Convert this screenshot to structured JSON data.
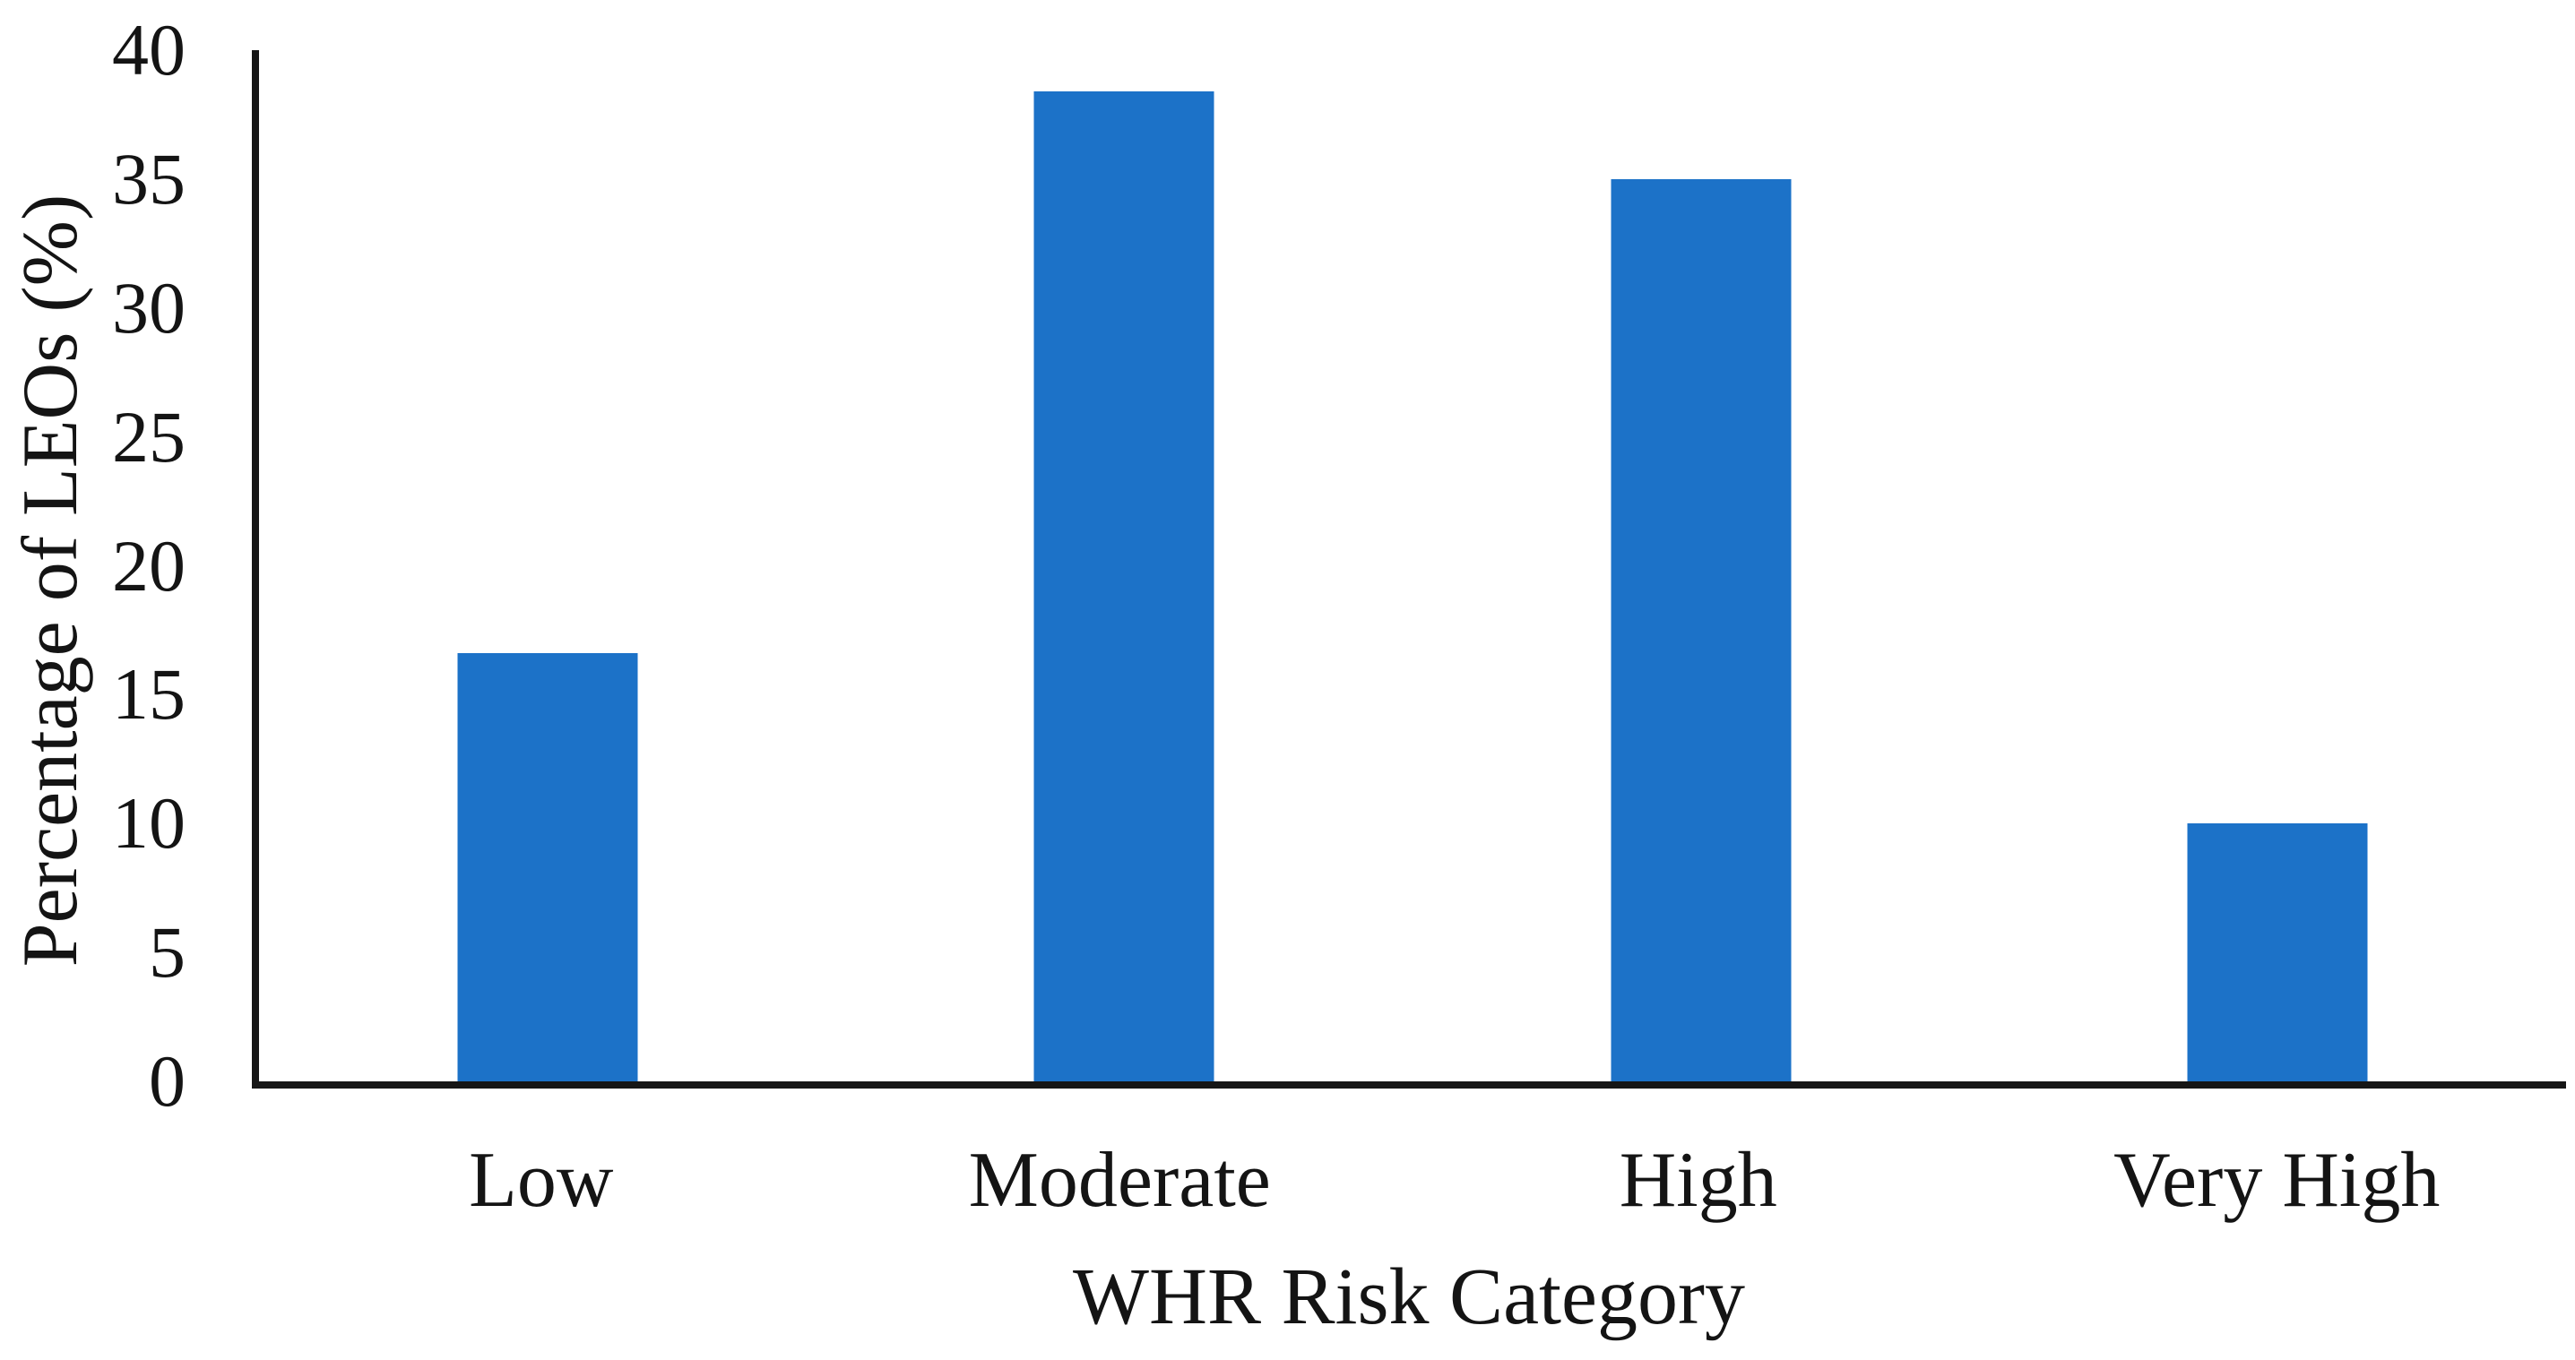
{
  "figure": {
    "background": "#ffffff",
    "text_color": "#141414"
  },
  "chart_data": {
    "type": "bar",
    "categories": [
      "Low",
      "Moderate",
      "High",
      "Very High"
    ],
    "values": [
      16.6,
      38.4,
      35.0,
      10.0
    ],
    "title": "",
    "xlabel": "WHR Risk Category",
    "ylabel": "Percentage of LEOs (%)",
    "ylim": [
      0,
      40
    ],
    "yticks": [
      0,
      5,
      10,
      15,
      20,
      25,
      30,
      35,
      40
    ],
    "grid": false,
    "legend": "none",
    "bar_color": "#1C72C8",
    "axis_color": "#161616"
  }
}
